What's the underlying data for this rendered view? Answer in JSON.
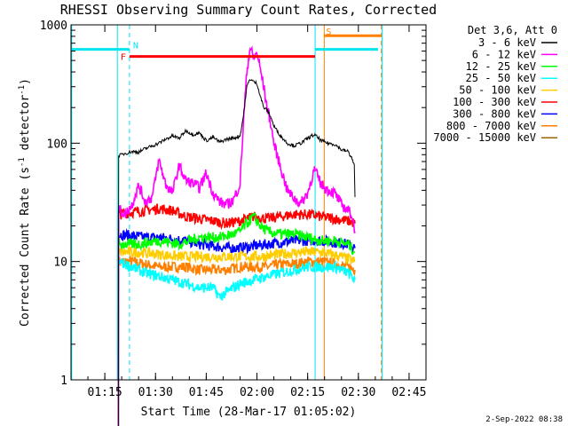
{
  "chart_data": {
    "type": "line",
    "title": "RHESSI Observing Summary Count Rates, Corrected",
    "xlabel": "Start Time (28-Mar-17 01:05:02)",
    "ylabel_main": "Corrected Count Rate (s",
    "ylabel_sup1": "-1",
    "ylabel_mid": " detector",
    "ylabel_sup2": "-1",
    "ylabel_end": ")",
    "y_scale": "log",
    "ylim": [
      1,
      1000
    ],
    "xlim_minutes": [
      0,
      105
    ],
    "x_ticks": [
      {
        "minute": 10,
        "label": "01:15"
      },
      {
        "minute": 25,
        "label": "01:30"
      },
      {
        "minute": 40,
        "label": "01:45"
      },
      {
        "minute": 55,
        "label": "02:00"
      },
      {
        "minute": 70,
        "label": "02:15"
      },
      {
        "minute": 85,
        "label": "02:30"
      },
      {
        "minute": 100,
        "label": "02:45"
      }
    ],
    "y_ticks": [
      {
        "value": 1,
        "label": "1"
      },
      {
        "value": 10,
        "label": "10"
      },
      {
        "value": 100,
        "label": "100"
      },
      {
        "value": 1000,
        "label": "1000"
      }
    ],
    "legend_header": "Det 3,6, Att 0",
    "legend_position": "right",
    "date_stamp": "2-Sep-2022 08:38",
    "series": [
      {
        "name": "3 - 6 keV",
        "color": "#000000",
        "points": [
          [
            14,
            0.3
          ],
          [
            14.1,
            78
          ],
          [
            16,
            82
          ],
          [
            18,
            85
          ],
          [
            20,
            84
          ],
          [
            22,
            90
          ],
          [
            24,
            95
          ],
          [
            26,
            100
          ],
          [
            28,
            108
          ],
          [
            30,
            115
          ],
          [
            32,
            110
          ],
          [
            34,
            128
          ],
          [
            36,
            118
          ],
          [
            38,
            122
          ],
          [
            40,
            105
          ],
          [
            42,
            112
          ],
          [
            44,
            102
          ],
          [
            46,
            108
          ],
          [
            48,
            110
          ],
          [
            50,
            115
          ],
          [
            51,
            170
          ],
          [
            52,
            300
          ],
          [
            53,
            350
          ],
          [
            54,
            330
          ],
          [
            55,
            320
          ],
          [
            56,
            250
          ],
          [
            57,
            200
          ],
          [
            58,
            190
          ],
          [
            59,
            170
          ],
          [
            60,
            140
          ],
          [
            62,
            115
          ],
          [
            64,
            100
          ],
          [
            66,
            95
          ],
          [
            68,
            100
          ],
          [
            70,
            110
          ],
          [
            72,
            118
          ],
          [
            74,
            105
          ],
          [
            76,
            100
          ],
          [
            78,
            98
          ],
          [
            80,
            88
          ],
          [
            82,
            85
          ],
          [
            83,
            75
          ],
          [
            83.8,
            65
          ],
          [
            84,
            35
          ]
        ]
      },
      {
        "name": "6 - 12 keV",
        "color": "#ff00ff",
        "points": [
          [
            14,
            0.3
          ],
          [
            14.1,
            28
          ],
          [
            16,
            25
          ],
          [
            18,
            30
          ],
          [
            20,
            44
          ],
          [
            22,
            32
          ],
          [
            24,
            35
          ],
          [
            26,
            72
          ],
          [
            28,
            45
          ],
          [
            30,
            38
          ],
          [
            32,
            65
          ],
          [
            34,
            48
          ],
          [
            36,
            46
          ],
          [
            38,
            42
          ],
          [
            40,
            56
          ],
          [
            42,
            38
          ],
          [
            44,
            32
          ],
          [
            46,
            30
          ],
          [
            48,
            33
          ],
          [
            50,
            45
          ],
          [
            51,
            150
          ],
          [
            52,
            400
          ],
          [
            53,
            650
          ],
          [
            54,
            520
          ],
          [
            55,
            580
          ],
          [
            56,
            420
          ],
          [
            57,
            300
          ],
          [
            58,
            200
          ],
          [
            59,
            150
          ],
          [
            60,
            100
          ],
          [
            62,
            62
          ],
          [
            64,
            40
          ],
          [
            66,
            34
          ],
          [
            68,
            31
          ],
          [
            70,
            38
          ],
          [
            72,
            60
          ],
          [
            74,
            45
          ],
          [
            76,
            40
          ],
          [
            78,
            38
          ],
          [
            80,
            30
          ],
          [
            82,
            27
          ],
          [
            83,
            25
          ],
          [
            84,
            18
          ]
        ]
      },
      {
        "name": "12 - 25 keV",
        "color": "#00ff00",
        "points": [
          [
            14,
            0.3
          ],
          [
            14.1,
            14
          ],
          [
            20,
            14
          ],
          [
            26,
            15
          ],
          [
            32,
            14
          ],
          [
            38,
            16
          ],
          [
            44,
            16
          ],
          [
            48,
            17
          ],
          [
            50,
            18
          ],
          [
            52,
            21
          ],
          [
            54,
            24
          ],
          [
            56,
            20
          ],
          [
            58,
            18
          ],
          [
            62,
            17
          ],
          [
            66,
            17
          ],
          [
            70,
            16
          ],
          [
            74,
            15
          ],
          [
            78,
            15
          ],
          [
            82,
            14
          ],
          [
            84,
            12
          ]
        ]
      },
      {
        "name": "25 - 50 keV",
        "color": "#00ffff",
        "points": [
          [
            14,
            0.3
          ],
          [
            14.1,
            10
          ],
          [
            18,
            9
          ],
          [
            22,
            8
          ],
          [
            26,
            7.5
          ],
          [
            30,
            7
          ],
          [
            34,
            6.5
          ],
          [
            38,
            6
          ],
          [
            42,
            6
          ],
          [
            44,
            5
          ],
          [
            46,
            5.5
          ],
          [
            50,
            6.5
          ],
          [
            54,
            7
          ],
          [
            58,
            7.5
          ],
          [
            62,
            8
          ],
          [
            66,
            8.5
          ],
          [
            70,
            9
          ],
          [
            74,
            9
          ],
          [
            78,
            9
          ],
          [
            82,
            8
          ],
          [
            84,
            7
          ]
        ]
      },
      {
        "name": "50 - 100 keV",
        "color": "#ffcc00",
        "points": [
          [
            14,
            0.3
          ],
          [
            14.1,
            12
          ],
          [
            20,
            12
          ],
          [
            26,
            11.5
          ],
          [
            32,
            11
          ],
          [
            38,
            11
          ],
          [
            44,
            11
          ],
          [
            50,
            11
          ],
          [
            56,
            11
          ],
          [
            62,
            11.5
          ],
          [
            68,
            12
          ],
          [
            74,
            12
          ],
          [
            80,
            11
          ],
          [
            84,
            10
          ]
        ]
      },
      {
        "name": "100 - 300 keV",
        "color": "#ff0000",
        "points": [
          [
            14,
            0.3
          ],
          [
            14.1,
            25
          ],
          [
            18,
            26
          ],
          [
            22,
            27
          ],
          [
            26,
            28
          ],
          [
            30,
            27
          ],
          [
            34,
            24
          ],
          [
            38,
            23
          ],
          [
            42,
            22
          ],
          [
            46,
            21
          ],
          [
            50,
            22
          ],
          [
            54,
            24
          ],
          [
            58,
            23
          ],
          [
            62,
            24
          ],
          [
            66,
            25
          ],
          [
            70,
            25
          ],
          [
            74,
            24
          ],
          [
            78,
            23
          ],
          [
            82,
            22
          ],
          [
            84,
            21
          ]
        ]
      },
      {
        "name": "300 - 800 keV",
        "color": "#0000ff",
        "points": [
          [
            14,
            0.3
          ],
          [
            14.1,
            17
          ],
          [
            18,
            16.5
          ],
          [
            22,
            16
          ],
          [
            26,
            16
          ],
          [
            30,
            15.5
          ],
          [
            34,
            15
          ],
          [
            38,
            14
          ],
          [
            42,
            13.5
          ],
          [
            46,
            13
          ],
          [
            50,
            13
          ],
          [
            54,
            13.5
          ],
          [
            58,
            14
          ],
          [
            62,
            14.5
          ],
          [
            66,
            15
          ],
          [
            70,
            15
          ],
          [
            74,
            15
          ],
          [
            78,
            14.5
          ],
          [
            82,
            14
          ],
          [
            84,
            13
          ]
        ]
      },
      {
        "name": "800 - 7000 keV",
        "color": "#ff8000",
        "points": [
          [
            14,
            0.3
          ],
          [
            14.1,
            10
          ],
          [
            18,
            10
          ],
          [
            22,
            9.5
          ],
          [
            26,
            9
          ],
          [
            30,
            9
          ],
          [
            34,
            9
          ],
          [
            38,
            8.5
          ],
          [
            42,
            8.5
          ],
          [
            46,
            8.5
          ],
          [
            50,
            9
          ],
          [
            54,
            9
          ],
          [
            58,
            9
          ],
          [
            62,
            9.5
          ],
          [
            66,
            9.5
          ],
          [
            70,
            10
          ],
          [
            74,
            10
          ],
          [
            78,
            9.5
          ],
          [
            82,
            9
          ],
          [
            84,
            8.5
          ]
        ]
      },
      {
        "name": "7000 - 15000 keV",
        "color": "#996600",
        "points": []
      }
    ],
    "segment_flags": [
      {
        "label": "N",
        "color": "#00e5ee",
        "x1": 0,
        "x2": 17.3,
        "y": 620
      },
      {
        "label": "F",
        "color": "#ff0000",
        "x1": 17.3,
        "x2": 72.2,
        "y": 540
      },
      {
        "label": "S",
        "color": "#ff8000",
        "x1": 74.9,
        "x2": 91.8,
        "y": 810
      }
    ],
    "vertical_markers": [
      {
        "minute": 13.7,
        "color": "#00e5ee",
        "style": "solid"
      },
      {
        "minute": 17.3,
        "color": "#00e5ee",
        "style": "dashed"
      },
      {
        "minute": 72.2,
        "color": "#00e5ee",
        "style": "solid"
      },
      {
        "minute": 74.9,
        "color": "#ff8000",
        "style": "solid"
      },
      {
        "minute": 91.8,
        "color": "#ff8000",
        "style": "dashed"
      },
      {
        "minute": 0.2,
        "color": "#00e5ee",
        "style": "solid"
      },
      {
        "minute": 92.0,
        "color": "#00e5ee",
        "style": "solid"
      }
    ]
  }
}
